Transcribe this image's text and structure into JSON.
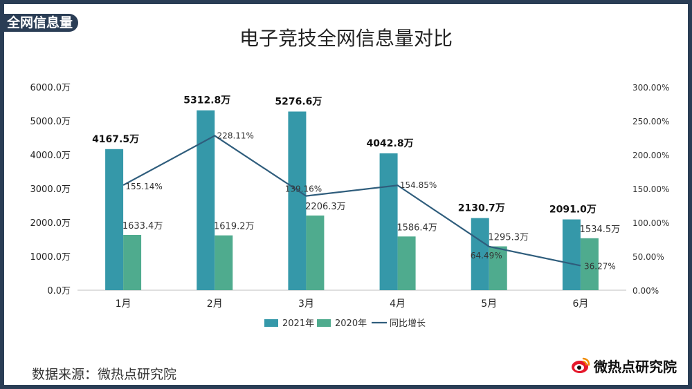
{
  "tag": "全网信息量",
  "colors": {
    "bar2021": "#3598a9",
    "bar2020": "#4fab8e",
    "line": "#2f5d7c"
  },
  "chart_data": {
    "type": "bar+line",
    "title": "电子竞技全网信息量对比",
    "categories": [
      "1月",
      "2月",
      "3月",
      "4月",
      "5月",
      "6月"
    ],
    "series": [
      {
        "name": "2021年",
        "type": "bar",
        "axis": "left",
        "values": [
          4167.5,
          5312.8,
          5276.6,
          4042.8,
          2130.7,
          2091.0
        ],
        "labels": [
          "4167.5万",
          "5312.8万",
          "5276.6万",
          "4042.8万",
          "2130.7万",
          "2091.0万"
        ]
      },
      {
        "name": "2020年",
        "type": "bar",
        "axis": "left",
        "values": [
          1633.4,
          1619.2,
          2206.3,
          1586.4,
          1295.3,
          1534.5
        ],
        "labels": [
          "1633.4万",
          "1619.2万",
          "2206.3万",
          "1586.4万",
          "1295.3万",
          "1534.5万"
        ]
      },
      {
        "name": "同比增长",
        "type": "line",
        "axis": "right",
        "values": [
          155.14,
          228.11,
          139.16,
          154.85,
          64.49,
          36.27
        ],
        "labels": [
          "155.14%",
          "228.11%",
          "139.16%",
          "154.85%",
          "64.49%",
          "36.27%"
        ]
      }
    ],
    "y_left": {
      "range": [
        0,
        6000
      ],
      "ticks": [
        "0.0万",
        "1000.0万",
        "2000.0万",
        "3000.0万",
        "4000.0万",
        "5000.0万",
        "6000.0万"
      ]
    },
    "y_right": {
      "range": [
        0,
        300
      ],
      "ticks": [
        "0.00%",
        "50.00%",
        "100.00%",
        "150.00%",
        "200.00%",
        "250.00%",
        "300.00%"
      ]
    },
    "legend": [
      "2021年",
      "2020年",
      "同比增长"
    ],
    "legend_position": "bottom"
  },
  "source": "数据来源：微热点研究院",
  "logo_text": "微热点研究院"
}
